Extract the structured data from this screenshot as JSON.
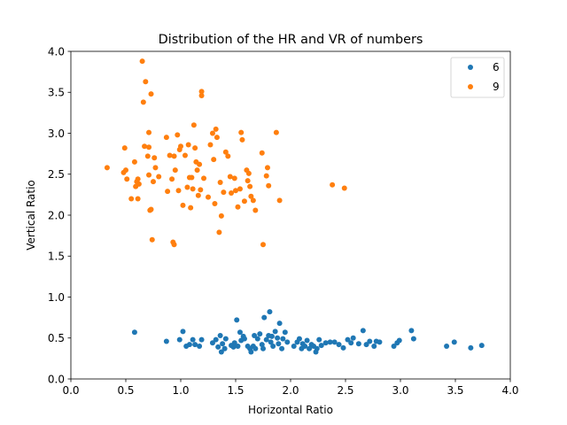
{
  "chart_data": {
    "type": "scatter",
    "title": "Distribution of the HR and VR of numbers",
    "xlabel": "Horizontal Ratio",
    "ylabel": "Vertical Ratio",
    "xlim": [
      0.0,
      4.0
    ],
    "ylim": [
      0.0,
      4.0
    ],
    "xticks": [
      "0.0",
      "0.5",
      "1.0",
      "1.5",
      "2.0",
      "2.5",
      "3.0",
      "3.5",
      "4.0"
    ],
    "yticks": [
      "0.0",
      "0.5",
      "1.0",
      "1.5",
      "2.0",
      "2.5",
      "3.0",
      "3.5",
      "4.0"
    ],
    "grid": false,
    "legend_position": "top-right",
    "series": [
      {
        "name": "6",
        "color": "#1f77b4",
        "points": [
          [
            0.58,
            0.57
          ],
          [
            0.87,
            0.46
          ],
          [
            0.99,
            0.48
          ],
          [
            1.02,
            0.58
          ],
          [
            1.05,
            0.4
          ],
          [
            1.08,
            0.42
          ],
          [
            1.11,
            0.48
          ],
          [
            1.13,
            0.42
          ],
          [
            1.17,
            0.4
          ],
          [
            1.19,
            0.48
          ],
          [
            1.29,
            0.44
          ],
          [
            1.32,
            0.48
          ],
          [
            1.34,
            0.39
          ],
          [
            1.36,
            0.53
          ],
          [
            1.37,
            0.33
          ],
          [
            1.38,
            0.43
          ],
          [
            1.4,
            0.37
          ],
          [
            1.41,
            0.49
          ],
          [
            1.48,
            0.39
          ],
          [
            1.49,
            0.44
          ],
          [
            1.51,
            0.72
          ],
          [
            1.52,
            0.4
          ],
          [
            1.54,
            0.57
          ],
          [
            1.55,
            0.47
          ],
          [
            1.57,
            0.52
          ],
          [
            1.58,
            0.49
          ],
          [
            1.61,
            0.4
          ],
          [
            1.63,
            0.37
          ],
          [
            1.64,
            0.33
          ],
          [
            1.66,
            0.4
          ],
          [
            1.67,
            0.53
          ],
          [
            1.68,
            0.37
          ],
          [
            1.7,
            0.49
          ],
          [
            1.72,
            0.55
          ],
          [
            1.74,
            0.42
          ],
          [
            1.75,
            0.37
          ],
          [
            1.76,
            0.75
          ],
          [
            1.78,
            0.48
          ],
          [
            1.8,
            0.53
          ],
          [
            1.81,
            0.82
          ],
          [
            1.82,
            0.45
          ],
          [
            1.83,
            0.52
          ],
          [
            1.84,
            0.4
          ],
          [
            1.86,
            0.58
          ],
          [
            1.88,
            0.5
          ],
          [
            1.89,
            0.43
          ],
          [
            1.9,
            0.68
          ],
          [
            1.92,
            0.37
          ],
          [
            1.93,
            0.49
          ],
          [
            1.95,
            0.57
          ],
          [
            1.97,
            0.45
          ],
          [
            2.03,
            0.4
          ],
          [
            2.06,
            0.45
          ],
          [
            2.08,
            0.49
          ],
          [
            2.1,
            0.37
          ],
          [
            2.11,
            0.43
          ],
          [
            2.13,
            0.4
          ],
          [
            2.15,
            0.47
          ],
          [
            2.17,
            0.37
          ],
          [
            2.19,
            0.42
          ],
          [
            2.21,
            0.4
          ],
          [
            2.23,
            0.33
          ],
          [
            2.24,
            0.37
          ],
          [
            2.26,
            0.48
          ],
          [
            2.28,
            0.41
          ],
          [
            2.32,
            0.44
          ],
          [
            2.36,
            0.45
          ],
          [
            2.4,
            0.45
          ],
          [
            2.44,
            0.42
          ],
          [
            2.48,
            0.38
          ],
          [
            2.52,
            0.48
          ],
          [
            2.55,
            0.44
          ],
          [
            2.57,
            0.5
          ],
          [
            2.62,
            0.43
          ],
          [
            2.66,
            0.59
          ],
          [
            2.69,
            0.42
          ],
          [
            2.72,
            0.46
          ],
          [
            2.76,
            0.4
          ],
          [
            2.78,
            0.46
          ],
          [
            2.81,
            0.45
          ],
          [
            2.94,
            0.4
          ],
          [
            2.97,
            0.44
          ],
          [
            2.99,
            0.47
          ],
          [
            3.1,
            0.59
          ],
          [
            3.12,
            0.49
          ],
          [
            3.42,
            0.4
          ],
          [
            3.49,
            0.45
          ],
          [
            3.64,
            0.38
          ],
          [
            3.74,
            0.41
          ],
          [
            1.46,
            0.41
          ]
        ]
      },
      {
        "name": "9",
        "color": "#ff7f0e",
        "points": [
          [
            0.33,
            2.58
          ],
          [
            0.48,
            2.52
          ],
          [
            0.49,
            2.82
          ],
          [
            0.5,
            2.55
          ],
          [
            0.51,
            2.44
          ],
          [
            0.55,
            2.2
          ],
          [
            0.58,
            2.65
          ],
          [
            0.59,
            2.35
          ],
          [
            0.6,
            2.41
          ],
          [
            0.61,
            2.2
          ],
          [
            0.61,
            2.44
          ],
          [
            0.62,
            2.38
          ],
          [
            0.65,
            3.88
          ],
          [
            0.66,
            3.38
          ],
          [
            0.67,
            2.84
          ],
          [
            0.68,
            3.63
          ],
          [
            0.7,
            2.72
          ],
          [
            0.71,
            2.83
          ],
          [
            0.71,
            2.49
          ],
          [
            0.71,
            3.01
          ],
          [
            0.72,
            2.06
          ],
          [
            0.73,
            3.48
          ],
          [
            0.73,
            2.07
          ],
          [
            0.74,
            1.7
          ],
          [
            0.75,
            2.41
          ],
          [
            0.76,
            2.7
          ],
          [
            0.77,
            2.58
          ],
          [
            0.8,
            2.47
          ],
          [
            0.87,
            2.95
          ],
          [
            0.88,
            2.29
          ],
          [
            0.9,
            2.73
          ],
          [
            0.92,
            2.44
          ],
          [
            0.93,
            1.67
          ],
          [
            0.94,
            1.64
          ],
          [
            0.94,
            2.72
          ],
          [
            0.95,
            2.55
          ],
          [
            0.97,
            2.98
          ],
          [
            0.98,
            2.3
          ],
          [
            0.99,
            2.8
          ],
          [
            1.0,
            2.84
          ],
          [
            1.02,
            2.12
          ],
          [
            1.04,
            2.73
          ],
          [
            1.06,
            2.34
          ],
          [
            1.07,
            2.86
          ],
          [
            1.08,
            2.46
          ],
          [
            1.09,
            2.09
          ],
          [
            1.1,
            2.46
          ],
          [
            1.11,
            2.32
          ],
          [
            1.12,
            3.1
          ],
          [
            1.13,
            2.82
          ],
          [
            1.14,
            2.65
          ],
          [
            1.15,
            2.55
          ],
          [
            1.16,
            2.24
          ],
          [
            1.17,
            2.62
          ],
          [
            1.18,
            2.31
          ],
          [
            1.19,
            3.51
          ],
          [
            1.19,
            3.46
          ],
          [
            1.21,
            2.45
          ],
          [
            1.25,
            2.22
          ],
          [
            1.27,
            2.86
          ],
          [
            1.29,
            3.0
          ],
          [
            1.3,
            2.68
          ],
          [
            1.31,
            2.14
          ],
          [
            1.32,
            3.05
          ],
          [
            1.33,
            2.95
          ],
          [
            1.35,
            1.79
          ],
          [
            1.36,
            2.4
          ],
          [
            1.37,
            1.99
          ],
          [
            1.39,
            2.28
          ],
          [
            1.41,
            2.77
          ],
          [
            1.43,
            2.72
          ],
          [
            1.45,
            2.47
          ],
          [
            1.46,
            2.27
          ],
          [
            1.49,
            2.45
          ],
          [
            1.5,
            2.3
          ],
          [
            1.52,
            2.1
          ],
          [
            1.54,
            2.32
          ],
          [
            1.55,
            3.01
          ],
          [
            1.56,
            2.92
          ],
          [
            1.58,
            2.17
          ],
          [
            1.6,
            2.55
          ],
          [
            1.61,
            2.42
          ],
          [
            1.62,
            2.51
          ],
          [
            1.63,
            2.35
          ],
          [
            1.64,
            2.23
          ],
          [
            1.66,
            2.18
          ],
          [
            1.68,
            2.06
          ],
          [
            1.74,
            2.76
          ],
          [
            1.75,
            1.64
          ],
          [
            1.78,
            2.48
          ],
          [
            1.79,
            2.58
          ],
          [
            1.8,
            2.36
          ],
          [
            1.87,
            3.01
          ],
          [
            1.9,
            2.18
          ],
          [
            2.38,
            2.37
          ],
          [
            2.49,
            2.33
          ]
        ]
      }
    ]
  }
}
